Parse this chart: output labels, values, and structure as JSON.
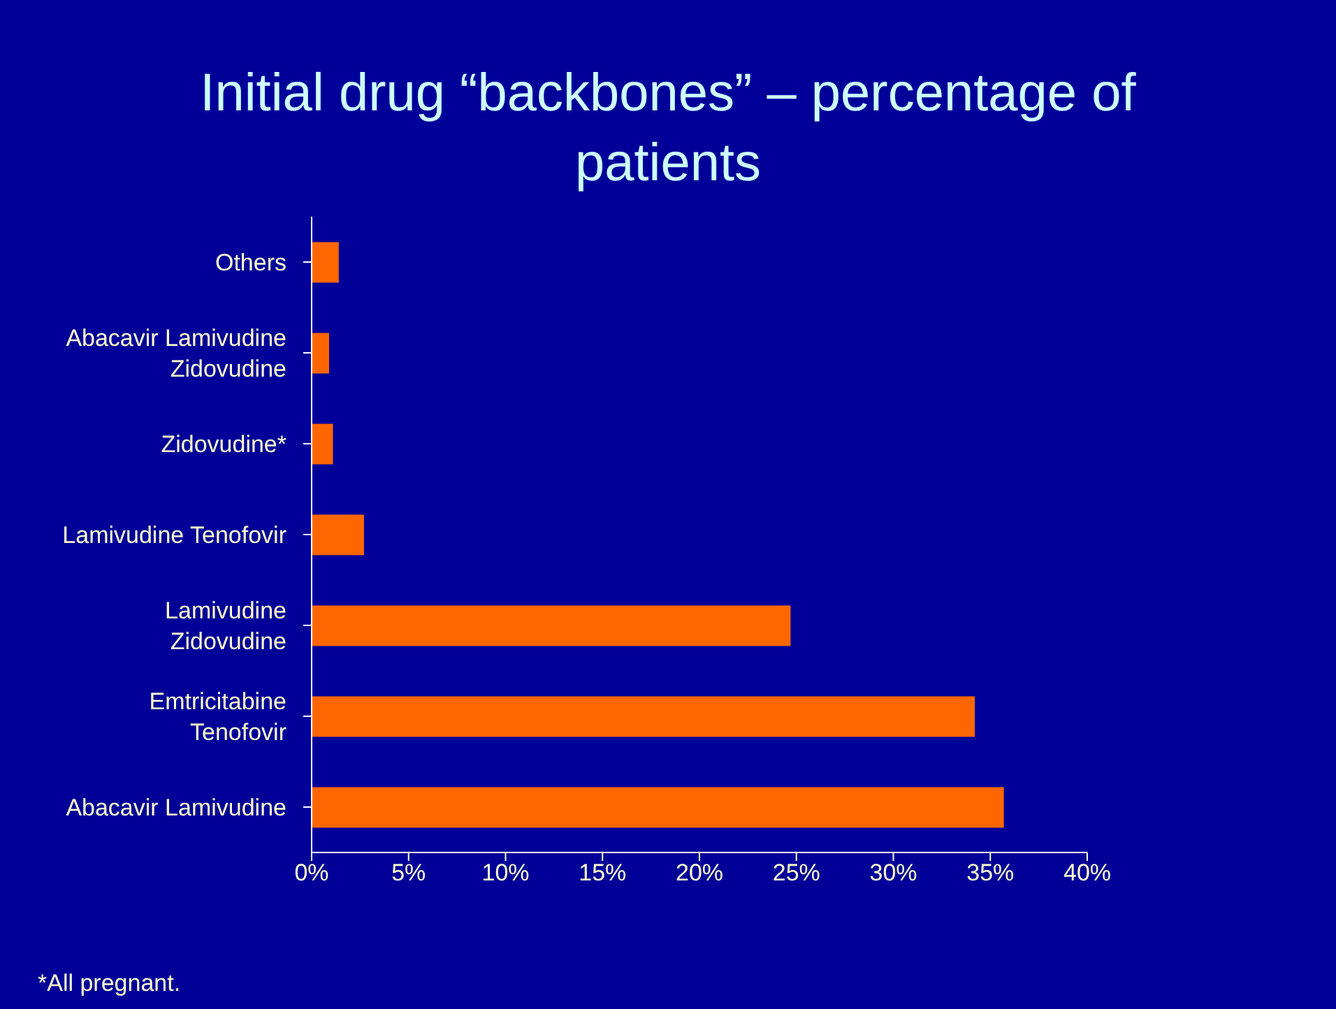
{
  "chart_data": {
    "type": "bar",
    "orientation": "horizontal",
    "title": "Initial drug “backbones” – percentage of patients",
    "categories": [
      "Others",
      "Abacavir Lamivudine Zidovudine",
      "Zidovudine*",
      "Lamivudine Tenofovir",
      "Lamivudine Zidovudine",
      "Emtricitabine Tenofovir",
      "Abacavir Lamivudine"
    ],
    "values": [
      1.4,
      0.9,
      1.1,
      2.7,
      24.7,
      34.2,
      35.7
    ],
    "color": "#ff6600",
    "xlim": [
      0,
      40
    ],
    "xticks": [
      {
        "value": 0,
        "label": "0%"
      },
      {
        "value": 5,
        "label": "5%"
      },
      {
        "value": 10,
        "label": "10%"
      },
      {
        "value": 15,
        "label": "15%"
      },
      {
        "value": 20,
        "label": "20%"
      },
      {
        "value": 25,
        "label": "25%"
      },
      {
        "value": 30,
        "label": "30%"
      },
      {
        "value": 35,
        "label": "35%"
      },
      {
        "value": 40,
        "label": "40%"
      }
    ],
    "grid": false,
    "legend": false,
    "annotations": [
      "*All pregnant."
    ]
  }
}
